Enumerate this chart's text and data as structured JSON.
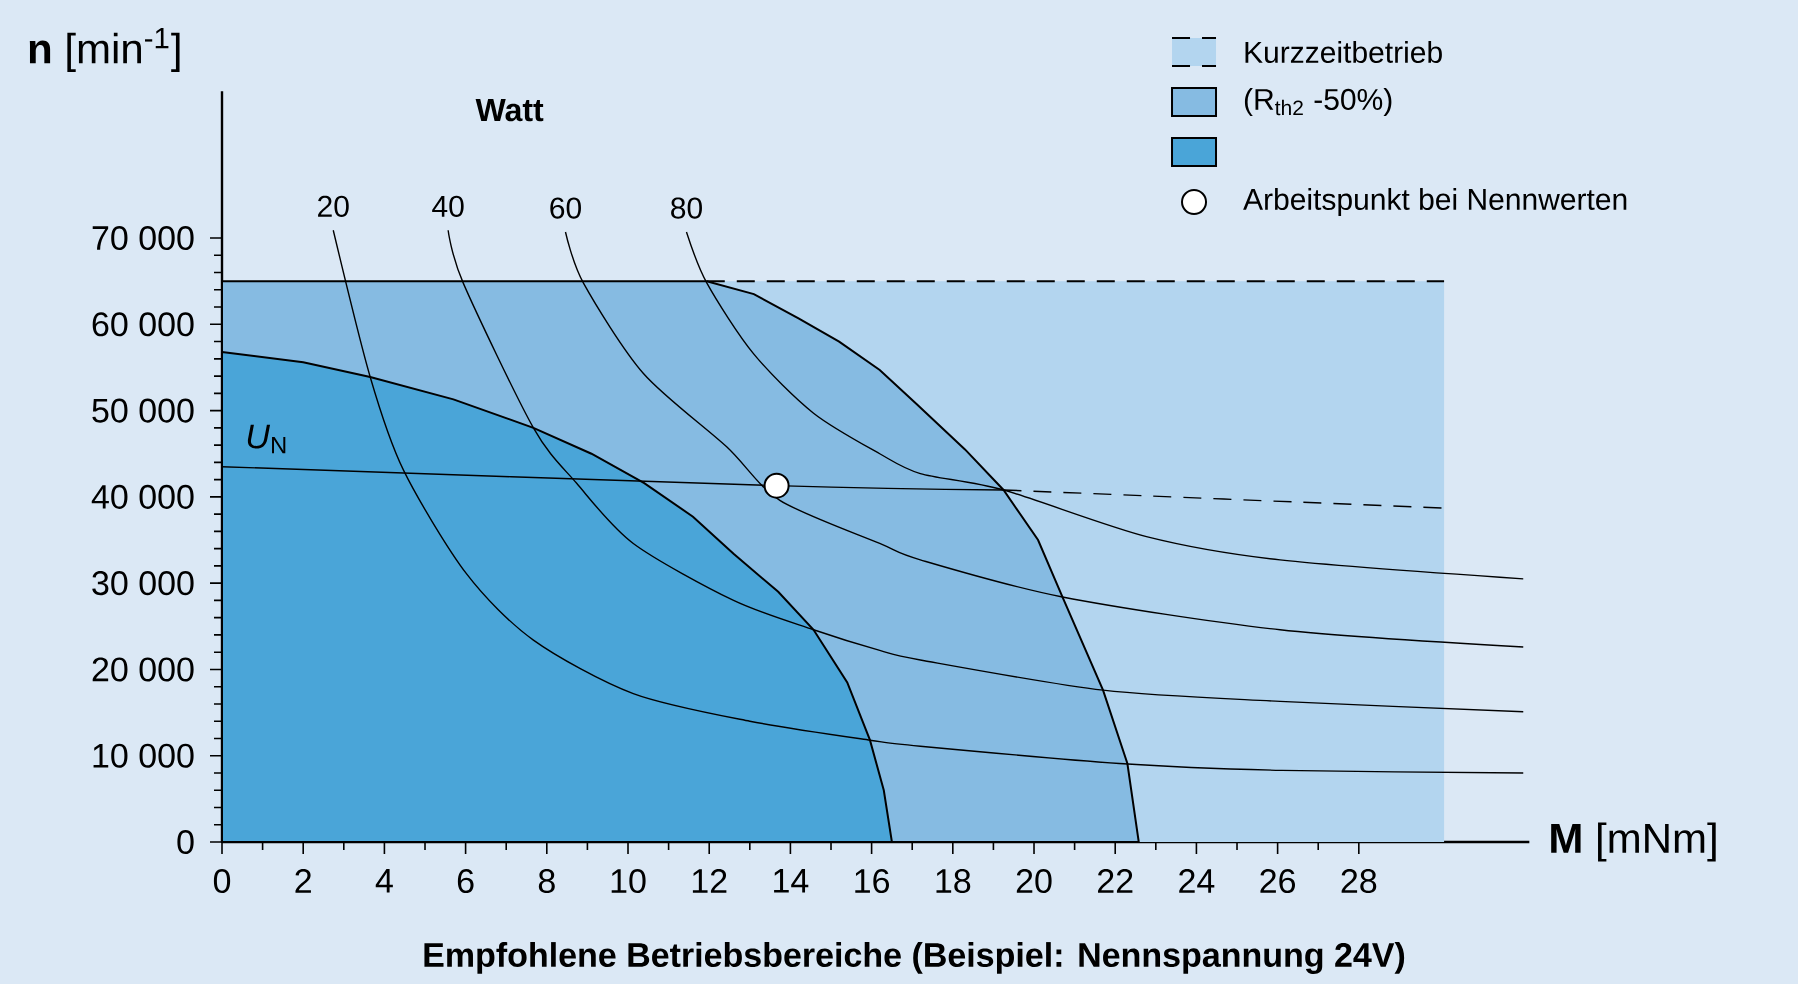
{
  "chart_data": {
    "type": "line",
    "title": "Empfohlene Betriebsbereiche (Beispiel: Nennspannung 24V)",
    "xlabel": "**M** [mNm]",
    "ylabel": "**n** [min$^{-1}$]",
    "annotations": [
      "Watt"
    ],
    "xlim": [
      0,
      32.2
    ],
    "ylim": [
      0,
      87000
    ],
    "xticks": [
      0,
      2,
      4,
      6,
      8,
      10,
      12,
      14,
      16,
      18,
      20,
      22,
      24,
      26,
      28
    ],
    "yticks": [
      0,
      {
        "value": 10000,
        "label": "10 000"
      },
      {
        "value": 20000,
        "label": "20 000"
      },
      {
        "value": 30000,
        "label": "30 000"
      },
      {
        "value": 40000,
        "label": "40 000"
      },
      {
        "value": 50000,
        "label": "50 000"
      },
      {
        "value": 60000,
        "label": "60 000"
      },
      {
        "value": 70000,
        "label": "70 000"
      }
    ],
    "legend": "top right",
    "series": [
      {
        "name": "Kurzzeitbetrieb",
        "type": "area",
        "color": "#b3d5ef",
        "line_style": "dashed",
        "x": [
          11.94,
          30.1
        ],
        "values": [
          65000,
          65000
        ]
      },
      {
        "name": "(R$_{th2}$ -50%)",
        "type": "area",
        "color": "#86bbe2",
        "x": [
          0,
          11.94,
          13.1,
          14.2,
          15.2,
          16.2,
          17.1,
          18.3,
          19.25,
          20.1,
          20.7,
          21.7,
          22.3,
          22.58
        ],
        "values": [
          65000,
          65000,
          63500,
          60700,
          58000,
          54700,
          50800,
          45500,
          40800,
          35000,
          28400,
          17600,
          9100,
          0
        ]
      },
      {
        "type": "area",
        "color": "#4aa5d8",
        "x": [
          0,
          2.0,
          3.65,
          5.7,
          7.67,
          9.1,
          10.4,
          11.6,
          12.6,
          13.7,
          14.57,
          15.4,
          15.96,
          16.3,
          16.5
        ],
        "values": [
          56800,
          55600,
          53900,
          51300,
          48000,
          45000,
          41600,
          37700,
          33400,
          29000,
          24600,
          18500,
          11800,
          6000,
          0
        ]
      },
      {
        "name": "20",
        "color": "#000000",
        "x": [
          2.74,
          3.65,
          4.47,
          6.02,
          7.67,
          10.13,
          13.0,
          15.96,
          17.2,
          22.1,
          26.1,
          32.05
        ],
        "values": [
          70900,
          53900,
          43100,
          31100,
          23400,
          17200,
          14000,
          11800,
          11100,
          9100,
          8300,
          8000
        ]
      },
      {
        "name": "40",
        "color": "#000000",
        "x": [
          5.57,
          5.94,
          7.67,
          8.73,
          10.13,
          12.6,
          14.57,
          16.2,
          17.2,
          21.7,
          26.06,
          32.05
        ],
        "values": [
          70900,
          64800,
          48000,
          41600,
          34600,
          28000,
          24600,
          22200,
          21100,
          17600,
          16300,
          15100
        ]
      },
      {
        "name": "60",
        "color": "#000000",
        "x": [
          8.46,
          8.9,
          10.38,
          12.43,
          13.74,
          16.2,
          17.2,
          20.7,
          26.06,
          32.05
        ],
        "values": [
          70700,
          64800,
          54300,
          45800,
          39600,
          34600,
          32700,
          28400,
          24600,
          22600
        ]
      },
      {
        "name": "80",
        "color": "#000000",
        "x": [
          11.44,
          11.94,
          13.09,
          14.57,
          16.2,
          17.2,
          19.25,
          22.77,
          26.06,
          32.05
        ],
        "values": [
          70700,
          64800,
          56600,
          49700,
          45000,
          42700,
          40800,
          35400,
          32700,
          30500
        ]
      },
      {
        "name": "*U*$_{N}$",
        "color": "#000000",
        "x": [
          0,
          13.66,
          19.25
        ],
        "values": [
          43500,
          41300,
          40800
        ]
      },
      {
        "color": "#000000",
        "line_style": "dashed",
        "x": [
          19.25,
          30.1
        ],
        "values": [
          40800,
          38700
        ]
      },
      {
        "name": "Arbeitspunkt bei Nennwerten",
        "type": "scatter",
        "color": "#ffffff",
        "marker": "circle",
        "x": [
          13.66
        ],
        "values": [
          41300
        ]
      }
    ]
  }
}
